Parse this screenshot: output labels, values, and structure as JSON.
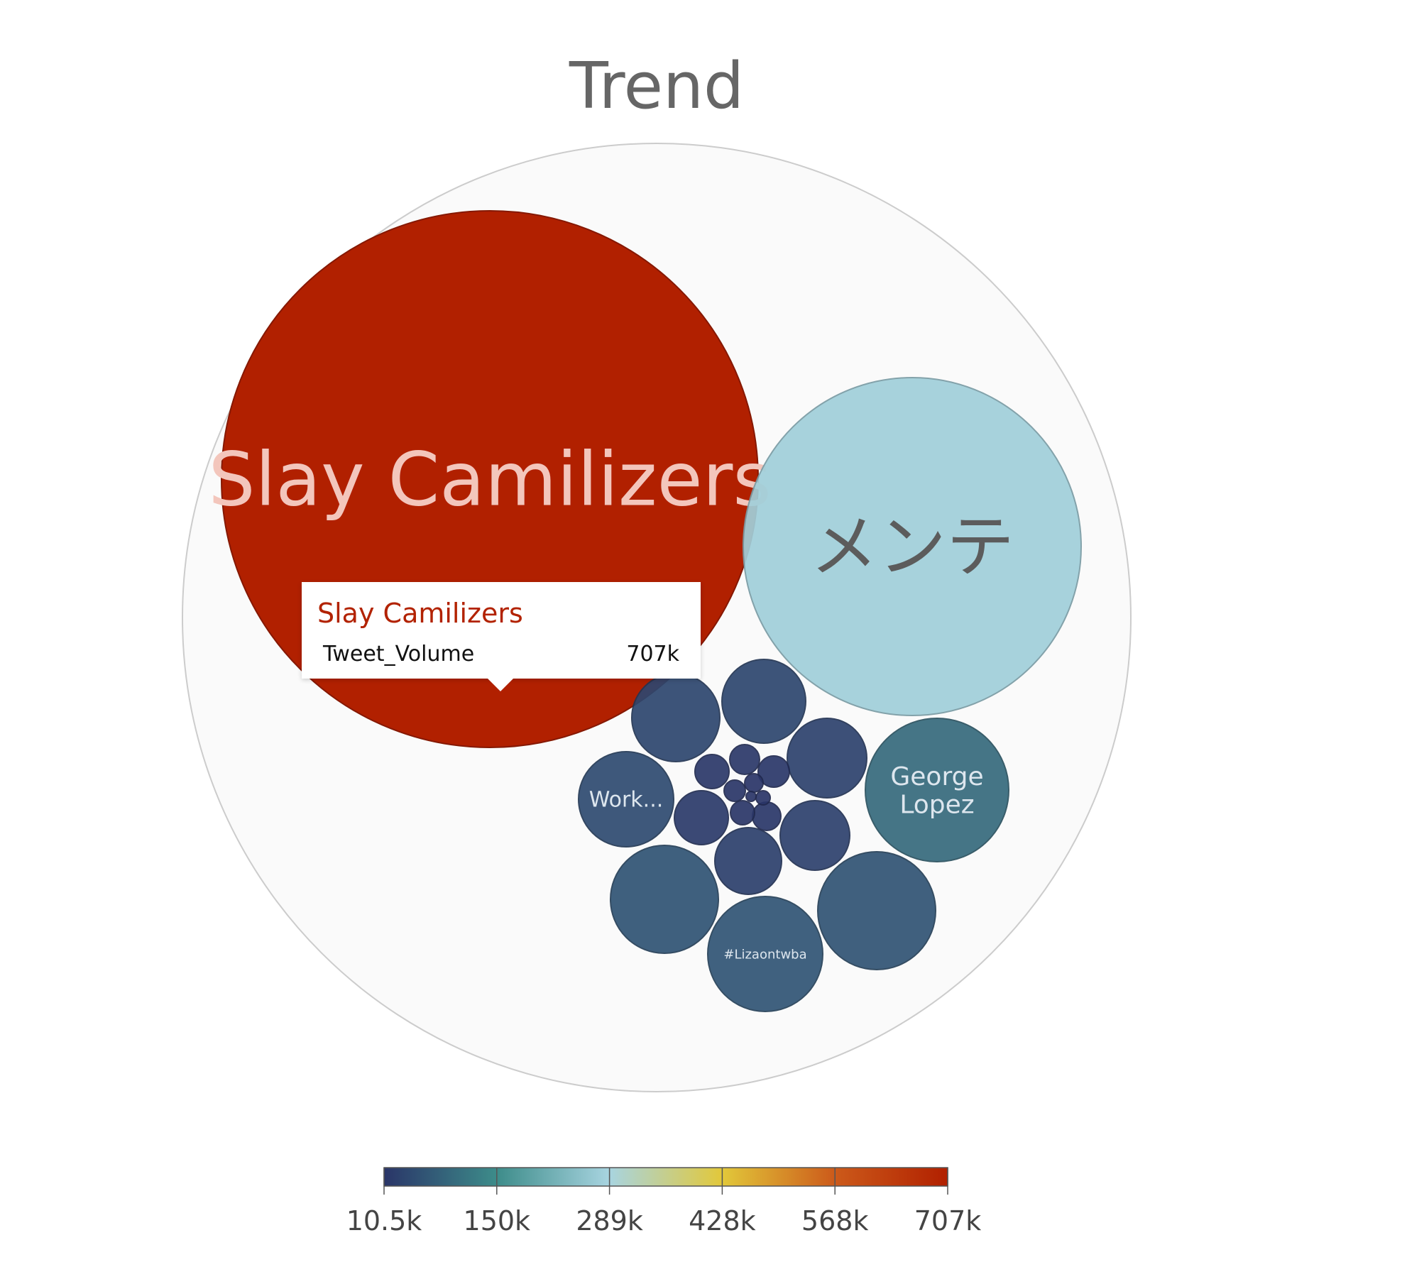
{
  "chart_data": {
    "type": "bubble",
    "title": "Trend",
    "measure": "Tweet_Volume",
    "colorscale": {
      "colors": [
        "#2a3568",
        "#3d8c8a",
        "#a8d4e0",
        "#e2c83a",
        "#cc5a1a",
        "#b12000"
      ],
      "ticks": [
        "10.5k",
        "150k",
        "289k",
        "428k",
        "568k",
        "707k"
      ],
      "min": 10500,
      "max": 707000
    },
    "bubbles": [
      {
        "label": "Slay Camilizers",
        "value": 707000
      },
      {
        "label": "メンテ",
        "value": 280000
      },
      {
        "label": "George Lopez",
        "value": 96000
      },
      {
        "label": "#Lizaontwba",
        "value": 62000
      },
      {
        "label": "",
        "value": 60000
      },
      {
        "label": "",
        "value": 58000
      },
      {
        "label": "Work...",
        "value": 46000
      },
      {
        "label": "",
        "value": 40000
      },
      {
        "label": "",
        "value": 38000
      },
      {
        "label": "",
        "value": 32000
      },
      {
        "label": "",
        "value": 30000
      },
      {
        "label": "",
        "value": 28000
      },
      {
        "label": "",
        "value": 20000
      },
      {
        "label": "",
        "value": 16000
      },
      {
        "label": "",
        "value": 15000
      },
      {
        "label": "",
        "value": 14000
      },
      {
        "label": "",
        "value": 13000
      },
      {
        "label": "",
        "value": 12000
      },
      {
        "label": "",
        "value": 11500
      },
      {
        "label": "",
        "value": 11000
      },
      {
        "label": "",
        "value": 10800
      },
      {
        "label": "",
        "value": 10500
      }
    ]
  },
  "tooltip": {
    "title": "Slay Camilizers",
    "label": "Tweet_Volume",
    "value": "707k"
  }
}
